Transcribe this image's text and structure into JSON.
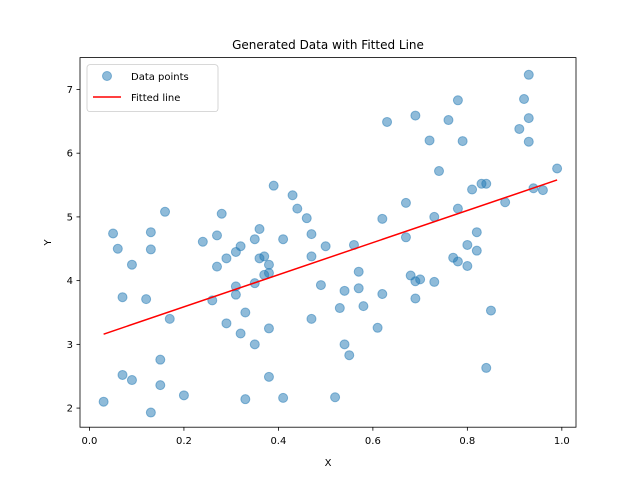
{
  "chart_data": {
    "type": "scatter",
    "title": "Generated Data with Fitted Line",
    "xlabel": "X",
    "ylabel": "Y",
    "xlim": [
      -0.02,
      1.03
    ],
    "ylim": [
      1.7,
      7.5
    ],
    "xticks": [
      0.0,
      0.2,
      0.4,
      0.6,
      0.8,
      1.0
    ],
    "yticks": [
      2,
      3,
      4,
      5,
      6,
      7
    ],
    "xtick_labels": [
      "0.0",
      "0.2",
      "0.4",
      "0.6",
      "0.8",
      "1.0"
    ],
    "ytick_labels": [
      "2",
      "3",
      "4",
      "5",
      "6",
      "7"
    ],
    "grid": false,
    "legend_position": "top-left",
    "colors": {
      "points": "#1f77b4",
      "line": "#ff0000"
    },
    "series": [
      {
        "name": "Data points",
        "kind": "scatter",
        "points": [
          [
            0.03,
            2.1
          ],
          [
            0.05,
            4.74
          ],
          [
            0.06,
            4.5
          ],
          [
            0.07,
            2.52
          ],
          [
            0.07,
            3.74
          ],
          [
            0.09,
            4.25
          ],
          [
            0.09,
            2.44
          ],
          [
            0.12,
            3.71
          ],
          [
            0.13,
            4.49
          ],
          [
            0.13,
            4.76
          ],
          [
            0.13,
            1.93
          ],
          [
            0.15,
            2.76
          ],
          [
            0.15,
            2.36
          ],
          [
            0.16,
            5.08
          ],
          [
            0.17,
            3.4
          ],
          [
            0.2,
            2.2
          ],
          [
            0.24,
            4.61
          ],
          [
            0.26,
            3.69
          ],
          [
            0.27,
            4.71
          ],
          [
            0.27,
            4.22
          ],
          [
            0.28,
            5.05
          ],
          [
            0.29,
            4.35
          ],
          [
            0.29,
            3.33
          ],
          [
            0.31,
            4.45
          ],
          [
            0.31,
            3.78
          ],
          [
            0.31,
            3.91
          ],
          [
            0.32,
            4.54
          ],
          [
            0.32,
            3.17
          ],
          [
            0.33,
            3.5
          ],
          [
            0.33,
            2.14
          ],
          [
            0.35,
            4.65
          ],
          [
            0.35,
            3.0
          ],
          [
            0.35,
            3.96
          ],
          [
            0.36,
            4.81
          ],
          [
            0.36,
            4.35
          ],
          [
            0.37,
            4.38
          ],
          [
            0.37,
            4.09
          ],
          [
            0.38,
            4.12
          ],
          [
            0.38,
            2.49
          ],
          [
            0.38,
            3.25
          ],
          [
            0.38,
            4.25
          ],
          [
            0.39,
            5.49
          ],
          [
            0.41,
            4.65
          ],
          [
            0.41,
            2.16
          ],
          [
            0.43,
            5.34
          ],
          [
            0.44,
            5.13
          ],
          [
            0.46,
            4.98
          ],
          [
            0.47,
            4.73
          ],
          [
            0.47,
            4.38
          ],
          [
            0.47,
            3.4
          ],
          [
            0.49,
            3.93
          ],
          [
            0.5,
            4.54
          ],
          [
            0.52,
            2.17
          ],
          [
            0.53,
            3.57
          ],
          [
            0.54,
            3.84
          ],
          [
            0.54,
            3.0
          ],
          [
            0.55,
            2.83
          ],
          [
            0.56,
            4.56
          ],
          [
            0.57,
            4.14
          ],
          [
            0.57,
            3.88
          ],
          [
            0.58,
            3.6
          ],
          [
            0.61,
            3.26
          ],
          [
            0.62,
            3.79
          ],
          [
            0.62,
            4.97
          ],
          [
            0.63,
            6.49
          ],
          [
            0.67,
            5.22
          ],
          [
            0.67,
            4.68
          ],
          [
            0.68,
            4.08
          ],
          [
            0.69,
            3.72
          ],
          [
            0.69,
            3.99
          ],
          [
            0.69,
            6.59
          ],
          [
            0.7,
            4.02
          ],
          [
            0.72,
            6.2
          ],
          [
            0.73,
            5.0
          ],
          [
            0.73,
            3.98
          ],
          [
            0.74,
            5.72
          ],
          [
            0.76,
            6.52
          ],
          [
            0.77,
            4.36
          ],
          [
            0.78,
            4.3
          ],
          [
            0.78,
            6.83
          ],
          [
            0.78,
            5.13
          ],
          [
            0.79,
            6.19
          ],
          [
            0.8,
            4.23
          ],
          [
            0.8,
            4.56
          ],
          [
            0.81,
            5.43
          ],
          [
            0.82,
            4.47
          ],
          [
            0.82,
            4.76
          ],
          [
            0.83,
            5.52
          ],
          [
            0.84,
            5.52
          ],
          [
            0.84,
            2.63
          ],
          [
            0.85,
            3.53
          ],
          [
            0.88,
            5.23
          ],
          [
            0.91,
            6.38
          ],
          [
            0.92,
            6.85
          ],
          [
            0.93,
            6.18
          ],
          [
            0.93,
            6.55
          ],
          [
            0.93,
            7.23
          ],
          [
            0.94,
            5.45
          ],
          [
            0.96,
            5.42
          ],
          [
            0.99,
            5.76
          ]
        ]
      },
      {
        "name": "Fitted line",
        "kind": "line",
        "points": [
          [
            0.03,
            3.16
          ],
          [
            0.99,
            5.58
          ]
        ]
      }
    ]
  }
}
